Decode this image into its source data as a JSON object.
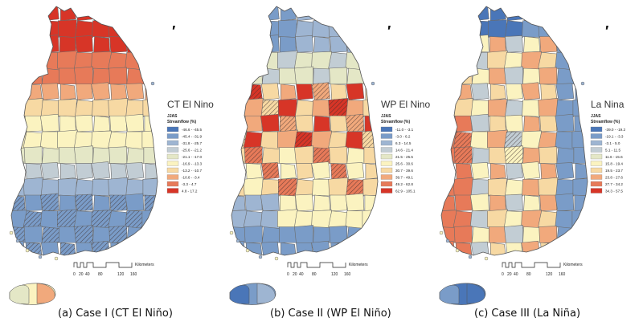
{
  "panels": [
    {
      "id": "case1",
      "title": "CT El Nino",
      "legend_head1": "JJAS",
      "legend_head2": "Streamflow (%)",
      "legend": [
        {
          "label": "-46.6 - -45.5",
          "color": "#4a76b8"
        },
        {
          "label": "-45.4 - -31.9",
          "color": "#7a9cc8"
        },
        {
          "label": "-31.8 - -25.7",
          "color": "#9eb5d2"
        },
        {
          "label": "-25.6 - -21.2",
          "color": "#c2cdd4"
        },
        {
          "label": "-21.1 - -17.0",
          "color": "#e4e7c6"
        },
        {
          "label": "-16.9 - -13.3",
          "color": "#fbf3c0"
        },
        {
          "label": "-13.2 - -10.7",
          "color": "#f7d9a3"
        },
        {
          "label": "-10.6 - -3.4",
          "color": "#f1a97c"
        },
        {
          "label": "-3.3 - 4.7",
          "color": "#e77a59"
        },
        {
          "label": "4.8 - 17.2",
          "color": "#d73527"
        }
      ],
      "caption": "(a) Case I (CT El Niño)",
      "scalebar_ticks": [
        "0",
        "20",
        "40",
        "80",
        "120",
        "160"
      ],
      "scalebar_unit": "Kilometers"
    },
    {
      "id": "case2",
      "title": "WP El Nino",
      "legend_head1": "JJAS",
      "legend_head2": "Streamflow (%)",
      "legend": [
        {
          "label": "-11.0 - -3.1",
          "color": "#4a76b8"
        },
        {
          "label": "-3.0 - 6.2",
          "color": "#7a9cc8"
        },
        {
          "label": "6.3 - 14.5",
          "color": "#9eb5d2"
        },
        {
          "label": "14.6 - 21.4",
          "color": "#c2cdd4"
        },
        {
          "label": "21.5 - 25.5",
          "color": "#e4e7c6"
        },
        {
          "label": "25.6 - 30.6",
          "color": "#fbf3c0"
        },
        {
          "label": "30.7 - 39.6",
          "color": "#f7d9a3"
        },
        {
          "label": "39.7 - 49.1",
          "color": "#f1a97c"
        },
        {
          "label": "49.2 - 62.8",
          "color": "#e77a59"
        },
        {
          "label": "62.9 - 105.1",
          "color": "#d73527"
        }
      ],
      "caption": "(b) Case II (WP El Niño)",
      "scalebar_ticks": [
        "0",
        "20",
        "40",
        "80",
        "120",
        "160"
      ],
      "scalebar_unit": "Kilometers"
    },
    {
      "id": "case3",
      "title": "La Nina",
      "legend_head1": "JJAS",
      "legend_head2": "Streamflow (%)",
      "legend": [
        {
          "label": "-39.0 - -19.2",
          "color": "#4a76b8"
        },
        {
          "label": "-19.1 - -3.3",
          "color": "#7a9cc8"
        },
        {
          "label": "-3.1 - 5.0",
          "color": "#9eb5d2"
        },
        {
          "label": "5.1 - 11.5",
          "color": "#c2cdd4"
        },
        {
          "label": "11.6 - 15.6",
          "color": "#e4e7c6"
        },
        {
          "label": "15.8 - 19.4",
          "color": "#fbf3c0"
        },
        {
          "label": "19.5 - 23.7",
          "color": "#f7d9a3"
        },
        {
          "label": "23.8 - 27.6",
          "color": "#f1a97c"
        },
        {
          "label": "27.7 - 34.2",
          "color": "#e77a59"
        },
        {
          "label": "34.3 - 57.5",
          "color": "#d73527"
        }
      ],
      "caption": "(c) Case III (La Niña)",
      "scalebar_ticks": [
        "0",
        "20",
        "40",
        "80",
        "120",
        "160"
      ],
      "scalebar_unit": "Kilometers"
    }
  ],
  "colors": {
    "boundary": "#6b6b6b",
    "hatch": "#3a2a2a"
  }
}
